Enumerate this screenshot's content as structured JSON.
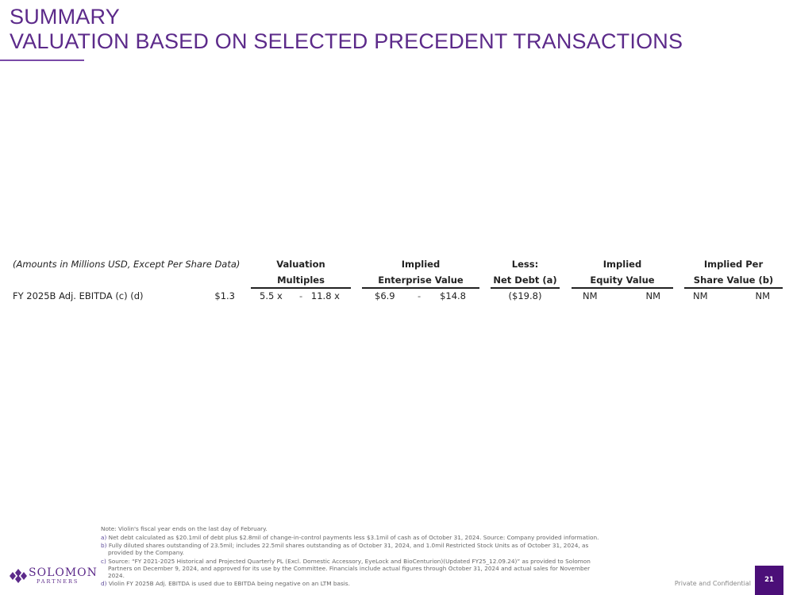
{
  "header": {
    "title_line1": "SUMMARY",
    "title_line2": "VALUATION BASED ON SELECTED PRECEDENT TRANSACTIONS"
  },
  "table": {
    "caption": "(Amounts in Millions USD, Except Per Share Data)",
    "columns": [
      {
        "line1": "Valuation",
        "line2": "Multiples"
      },
      {
        "line1": "Implied",
        "line2": "Enterprise Value"
      },
      {
        "line1": "Less:",
        "line2": "Net Debt (a)"
      },
      {
        "line1": "Implied",
        "line2": "Equity Value"
      },
      {
        "line1": "Implied Per",
        "line2": "Share Value (b)"
      }
    ],
    "row": {
      "label": "FY 2025B Adj. EBITDA (c) (d)",
      "metric": "$1.3",
      "multiple_low": "5.5 x",
      "multiple_sep": "-",
      "multiple_high": "11.8 x",
      "ev_low": "$6.9",
      "ev_sep": "-",
      "ev_high": "$14.8",
      "net_debt": "($19.8)",
      "equity_low": "NM",
      "equity_high": "NM",
      "per_share_low": "NM",
      "per_share_high": "NM"
    }
  },
  "footnotes": {
    "note": "Note: Violin's fiscal year ends on the last day of February.",
    "items": [
      {
        "marker": "a)",
        "text": "Net debt calculated as $20.1mil of debt plus $2.8mil of change-in-control payments less $3.1mil of cash as of October 31, 2024. Source: Company provided information."
      },
      {
        "marker": "b)",
        "text": "Fully diluted shares outstanding of 23.5mil; includes 22.5mil shares outstanding as of October 31, 2024, and 1.0mil Restricted Stock Units as of October 31, 2024, as",
        "cont": "provided by the Company."
      },
      {
        "marker": "c)",
        "text": "Source: “FY 2021-2025 Historical and Projected Quarterly PL (Excl. Domestic Accessory, EyeLock and BioCenturion)(Updated FY25_12.09.24)” as provided to Solomon",
        "cont": "Partners on December 9, 2024, and approved for its use by the Committee. Financials include actual figures through October 31, 2024 and actual sales for November",
        "cont2": "2024."
      },
      {
        "marker": "d)",
        "text": "Violin FY 2025B Adj. EBITDA is used due to EBITDA being negative on an LTM basis."
      }
    ]
  },
  "footer": {
    "logo_name": "SOLOMON",
    "logo_sub": "PARTNERS",
    "confidential": "Private and Confidential",
    "page_number": "21"
  },
  "colors": {
    "brand": "#5c2a8a",
    "page_box": "#4b0f78"
  }
}
